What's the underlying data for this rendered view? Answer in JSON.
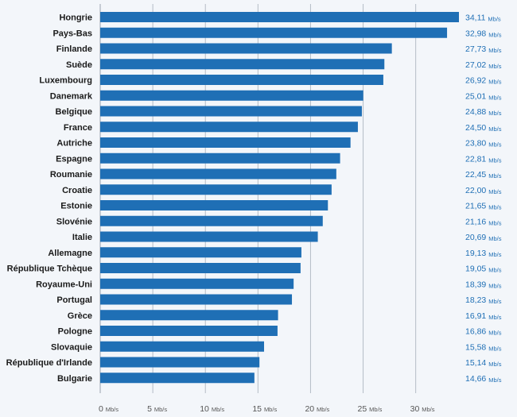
{
  "chart_data": {
    "type": "bar",
    "orientation": "horizontal",
    "categories": [
      "Hongrie",
      "Pays-Bas",
      "Finlande",
      "Suède",
      "Luxembourg",
      "Danemark",
      "Belgique",
      "France",
      "Autriche",
      "Espagne",
      "Roumanie",
      "Croatie",
      "Estonie",
      "Slovénie",
      "Italie",
      "Allemagne",
      "République Tchèque",
      "Royaume-Uni",
      "Portugal",
      "Grèce",
      "Pologne",
      "Slovaquie",
      "République d'Irlande",
      "Bulgarie"
    ],
    "values": [
      34.11,
      32.98,
      27.73,
      27.02,
      26.92,
      25.01,
      24.88,
      24.5,
      23.8,
      22.81,
      22.45,
      22.0,
      21.65,
      21.16,
      20.69,
      19.13,
      19.05,
      18.39,
      18.23,
      16.91,
      16.86,
      15.58,
      15.14,
      14.66
    ],
    "value_labels": [
      "34,11",
      "32,98",
      "27,73",
      "27,02",
      "26,92",
      "25,01",
      "24,88",
      "24,50",
      "23,80",
      "22,81",
      "22,45",
      "22,00",
      "21,65",
      "21,16",
      "20,69",
      "19,13",
      "19,05",
      "18,39",
      "18,23",
      "16,91",
      "16,86",
      "15,58",
      "15,14",
      "14,66"
    ],
    "unit": "Mb/s",
    "xlim": [
      0,
      34.11
    ],
    "xticks": [
      0,
      5,
      10,
      15,
      20,
      25,
      30
    ],
    "grid": true,
    "bar_color": "#1f6fb5",
    "label_color": "#1f6fb5"
  }
}
